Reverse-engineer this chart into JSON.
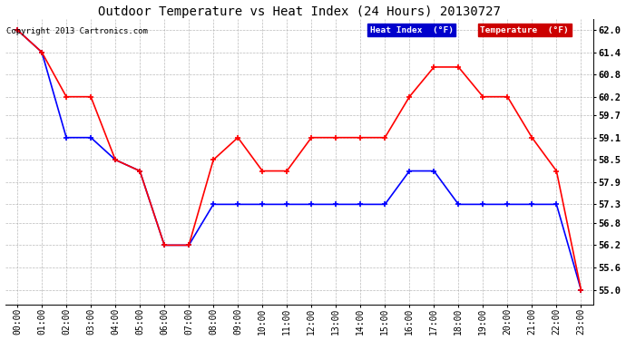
{
  "title": "Outdoor Temperature vs Heat Index (24 Hours) 20130727",
  "copyright": "Copyright 2013 Cartronics.com",
  "legend_heat": "Heat Index  (°F)",
  "legend_temp": "Temperature  (°F)",
  "x_labels": [
    "00:00",
    "01:00",
    "02:00",
    "03:00",
    "04:00",
    "05:00",
    "06:00",
    "07:00",
    "08:00",
    "09:00",
    "10:00",
    "11:00",
    "12:00",
    "13:00",
    "14:00",
    "15:00",
    "16:00",
    "17:00",
    "18:00",
    "19:00",
    "20:00",
    "21:00",
    "22:00",
    "23:00"
  ],
  "heat_index": [
    62.0,
    61.4,
    59.1,
    59.1,
    58.5,
    58.2,
    56.2,
    56.2,
    57.3,
    57.3,
    57.3,
    57.3,
    57.3,
    57.3,
    57.3,
    57.3,
    58.2,
    58.2,
    57.3,
    57.3,
    57.3,
    57.3,
    57.3,
    55.0
  ],
  "temperature": [
    62.0,
    61.4,
    60.2,
    60.2,
    58.5,
    58.2,
    56.2,
    56.2,
    58.5,
    59.1,
    58.2,
    58.2,
    59.1,
    59.1,
    59.1,
    59.1,
    60.2,
    61.0,
    61.0,
    60.2,
    60.2,
    59.1,
    58.2,
    55.0
  ],
  "y_ticks": [
    55.0,
    55.6,
    56.2,
    56.8,
    57.3,
    57.9,
    58.5,
    59.1,
    59.7,
    60.2,
    60.8,
    61.4,
    62.0
  ],
  "heat_color": "#0000ff",
  "temp_color": "#ff0000",
  "bg_color": "#ffffff",
  "grid_color": "#aaaaaa",
  "title_fontsize": 10,
  "tick_fontsize": 7,
  "ytick_fontsize": 7.5,
  "legend_fontsize": 6.8,
  "copyright_fontsize": 6.5
}
